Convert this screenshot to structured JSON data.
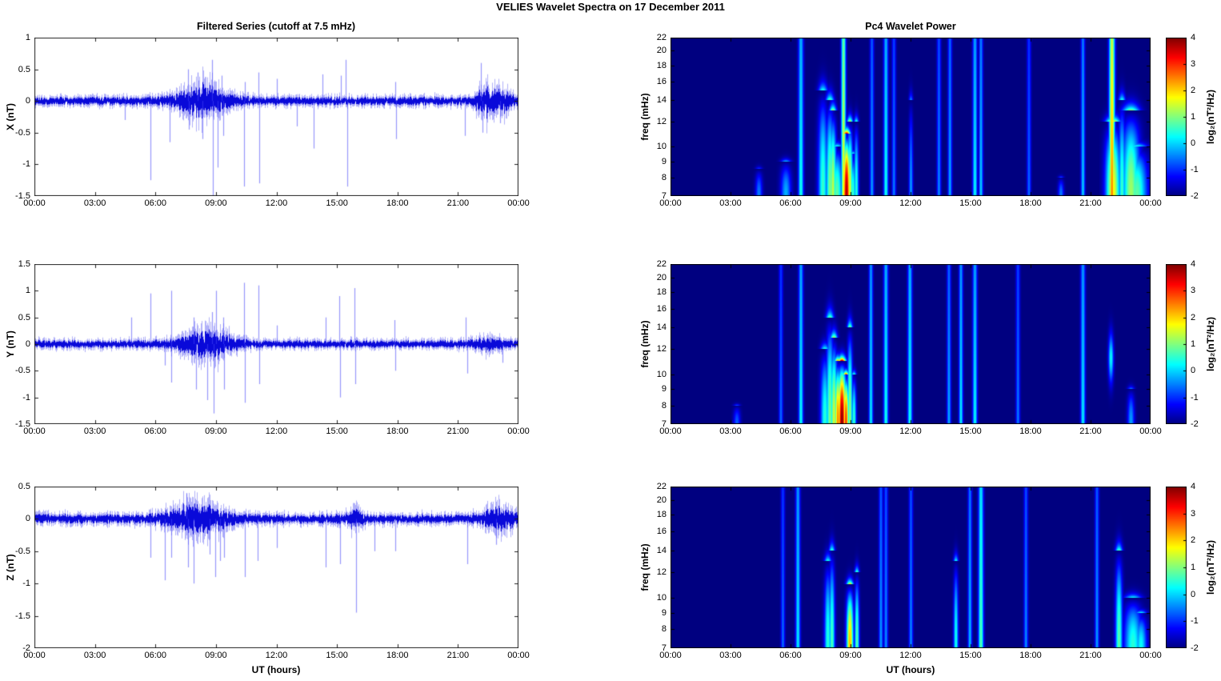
{
  "figure_title": "VELIES Wavelet Spectra on 17 December  2011",
  "left_column": {
    "title": "Filtered Series (cutoff at 7.5 mHz)",
    "xlabel": "UT (hours)"
  },
  "right_column": {
    "title": "Pc4 Wavelet Power",
    "xlabel": "UT (hours)",
    "ylabel": "freq (mHz)"
  },
  "time_axis": {
    "tick_hours": [
      0,
      3,
      6,
      9,
      12,
      15,
      18,
      21,
      24
    ],
    "tick_labels": [
      "00:00",
      "03:00",
      "06:00",
      "09:00",
      "12:00",
      "15:00",
      "18:00",
      "21:00",
      "00:00"
    ]
  },
  "colorbar": {
    "label": "log₂(nT²/Hz)",
    "tick_labels": [
      "4",
      "3",
      "2",
      "1",
      "0",
      "-1",
      "-2"
    ],
    "tick_values": [
      4,
      3,
      2,
      1,
      0,
      -1,
      -2
    ],
    "range": [
      -2,
      4
    ],
    "colormap": "jet"
  },
  "colors": {
    "series_line": "#0000E0",
    "series_fringe": "#3C3CF0",
    "spectrogram_background": "#000A8E",
    "axis": "#000000",
    "background": "#FFFFFF"
  },
  "chart_data": [
    {
      "type": "line",
      "component": "X",
      "ylabel": "X (nT)",
      "ylim": [
        -1.5,
        1
      ],
      "ytick_values": [
        1,
        0.5,
        0,
        -0.5,
        -1,
        -1.5
      ],
      "ytick_labels": [
        "1",
        "0.5",
        "0",
        "-0.5",
        "-1",
        "-1.5"
      ],
      "x_range_hours": [
        0,
        24
      ],
      "noise_sigma": 0.05,
      "bursts": [
        {
          "center": 8.3,
          "half_width": 0.9,
          "amp": 0.15
        },
        {
          "center": 22.35,
          "half_width": 0.35,
          "amp": 0.12
        },
        {
          "center": 23.2,
          "half_width": 0.35,
          "amp": 0.08
        }
      ],
      "spikes": [
        {
          "t": 4.5,
          "v": -0.3
        },
        {
          "t": 5.75,
          "v": -1.25
        },
        {
          "t": 6.7,
          "v": -0.65
        },
        {
          "t": 7.6,
          "v": 0.5
        },
        {
          "t": 7.65,
          "v": -0.45
        },
        {
          "t": 8.1,
          "v": 0.45
        },
        {
          "t": 8.35,
          "v": -0.6
        },
        {
          "t": 8.8,
          "v": 0.65
        },
        {
          "t": 8.85,
          "v": -1.5
        },
        {
          "t": 9.1,
          "v": -1.05
        },
        {
          "t": 9.3,
          "v": 0.4
        },
        {
          "t": 9.35,
          "v": -0.55
        },
        {
          "t": 10.4,
          "v": -1.35
        },
        {
          "t": 10.45,
          "v": 0.3
        },
        {
          "t": 11.1,
          "v": 0.45
        },
        {
          "t": 11.15,
          "v": -1.3
        },
        {
          "t": 12.0,
          "v": 0.35
        },
        {
          "t": 13.0,
          "v": -0.4
        },
        {
          "t": 13.85,
          "v": -0.75
        },
        {
          "t": 14.3,
          "v": 0.42
        },
        {
          "t": 15.2,
          "v": 0.4
        },
        {
          "t": 15.45,
          "v": 0.65
        },
        {
          "t": 15.5,
          "v": -1.35
        },
        {
          "t": 17.9,
          "v": 0.3
        },
        {
          "t": 17.95,
          "v": -0.6
        },
        {
          "t": 21.35,
          "v": -0.55
        },
        {
          "t": 22.15,
          "v": 0.6
        },
        {
          "t": 22.2,
          "v": -0.5
        },
        {
          "t": 23.1,
          "v": -0.35
        }
      ]
    },
    {
      "type": "line",
      "component": "Y",
      "ylabel": "Y (nT)",
      "ylim": [
        -1.5,
        1.5
      ],
      "ytick_values": [
        1.5,
        1,
        0.5,
        0,
        -0.5,
        -1,
        -1.5
      ],
      "ytick_labels": [
        "1.5",
        "1",
        "0.5",
        "0",
        "-0.5",
        "-1",
        "-1.5"
      ],
      "x_range_hours": [
        0,
        24
      ],
      "noise_sigma": 0.055,
      "bursts": [
        {
          "center": 8.5,
          "half_width": 0.9,
          "amp": 0.16
        },
        {
          "center": 22.5,
          "half_width": 0.5,
          "amp": 0.05
        }
      ],
      "spikes": [
        {
          "t": 4.8,
          "v": 0.5
        },
        {
          "t": 5.75,
          "v": 0.95
        },
        {
          "t": 6.45,
          "v": -0.4
        },
        {
          "t": 6.78,
          "v": 1.0
        },
        {
          "t": 6.8,
          "v": -0.72
        },
        {
          "t": 7.9,
          "v": 0.5
        },
        {
          "t": 8.0,
          "v": -0.85
        },
        {
          "t": 8.55,
          "v": -1.05
        },
        {
          "t": 8.8,
          "v": 0.6
        },
        {
          "t": 8.9,
          "v": -1.3
        },
        {
          "t": 9.0,
          "v": 1.0
        },
        {
          "t": 9.35,
          "v": 0.5
        },
        {
          "t": 9.4,
          "v": -0.85
        },
        {
          "t": 10.4,
          "v": 1.15
        },
        {
          "t": 10.45,
          "v": -1.1
        },
        {
          "t": 11.1,
          "v": 1.1
        },
        {
          "t": 11.15,
          "v": -0.75
        },
        {
          "t": 12.0,
          "v": 0.35
        },
        {
          "t": 14.45,
          "v": 0.5
        },
        {
          "t": 15.1,
          "v": 0.9
        },
        {
          "t": 15.15,
          "v": -1.0
        },
        {
          "t": 15.85,
          "v": 1.05
        },
        {
          "t": 15.9,
          "v": -0.75
        },
        {
          "t": 17.85,
          "v": 0.45
        },
        {
          "t": 17.9,
          "v": -0.5
        },
        {
          "t": 21.4,
          "v": 0.5
        },
        {
          "t": 21.45,
          "v": -0.55
        },
        {
          "t": 23.2,
          "v": -0.35
        }
      ]
    },
    {
      "type": "line",
      "component": "Z",
      "ylabel": "Z (nT)",
      "ylim": [
        -2,
        0.5
      ],
      "ytick_values": [
        0.5,
        0,
        -0.5,
        -1,
        -1.5,
        -2
      ],
      "ytick_labels": [
        "0.5",
        "0",
        "-0.5",
        "-1",
        "-1.5",
        "-2"
      ],
      "x_range_hours": [
        0,
        24
      ],
      "noise_sigma": 0.055,
      "bursts": [
        {
          "center": 8.1,
          "half_width": 1.0,
          "amp": 0.13
        },
        {
          "center": 15.9,
          "half_width": 0.25,
          "amp": 0.08
        },
        {
          "center": 23.0,
          "half_width": 0.55,
          "amp": 0.1
        }
      ],
      "spikes": [
        {
          "t": 5.75,
          "v": -0.6
        },
        {
          "t": 6.45,
          "v": -0.95
        },
        {
          "t": 6.8,
          "v": -0.6
        },
        {
          "t": 7.55,
          "v": 0.4
        },
        {
          "t": 7.6,
          "v": -0.75
        },
        {
          "t": 7.9,
          "v": -1.0
        },
        {
          "t": 8.7,
          "v": -0.55
        },
        {
          "t": 8.95,
          "v": -0.9
        },
        {
          "t": 9.2,
          "v": -0.65
        },
        {
          "t": 9.4,
          "v": -0.6
        },
        {
          "t": 10.45,
          "v": -0.9
        },
        {
          "t": 11.05,
          "v": -0.65
        },
        {
          "t": 12.0,
          "v": -0.45
        },
        {
          "t": 14.45,
          "v": -0.75
        },
        {
          "t": 15.15,
          "v": -0.7
        },
        {
          "t": 15.93,
          "v": -1.45
        },
        {
          "t": 16.85,
          "v": -0.5
        },
        {
          "t": 17.88,
          "v": -0.5
        },
        {
          "t": 21.45,
          "v": -0.7
        },
        {
          "t": 22.9,
          "v": -0.4
        }
      ]
    },
    {
      "type": "heatmap",
      "component": "X",
      "ylabel": "freq (mHz)",
      "ylim": [
        7,
        22
      ],
      "yscale": "log",
      "ytick_values": [
        22,
        20,
        18,
        16,
        14,
        12,
        10,
        9,
        8,
        7
      ],
      "ytick_labels": [
        "22",
        "20",
        "18",
        "16",
        "14",
        "12",
        "10",
        "9",
        "8",
        "7"
      ],
      "value_range": [
        -2,
        4
      ],
      "background_value": -2,
      "features": [
        {
          "t": 4.4,
          "f": 8.5,
          "p": -0.5,
          "w": 0.12
        },
        {
          "t": 5.75,
          "f": 9,
          "p": -0.2,
          "w": 0.18
        },
        {
          "t": 6.5,
          "f": 22,
          "p": 0.4,
          "w": 0.09
        },
        {
          "t": 7.6,
          "f": 15,
          "p": 0.6,
          "w": 0.16
        },
        {
          "t": 7.95,
          "f": 14,
          "p": 1.0,
          "w": 0.14
        },
        {
          "t": 8.1,
          "f": 13,
          "p": 1.4,
          "w": 0.12
        },
        {
          "t": 8.3,
          "f": 10,
          "p": 0.8,
          "w": 0.2
        },
        {
          "t": 8.63,
          "f": 22,
          "p": 1.8,
          "w": 0.08
        },
        {
          "t": 8.78,
          "f": 11,
          "p": 3.8,
          "w": 0.13
        },
        {
          "t": 8.95,
          "f": 12,
          "p": 1.6,
          "w": 0.1
        },
        {
          "t": 9.1,
          "f": 9.5,
          "p": 0.6,
          "w": 0.1
        },
        {
          "t": 9.27,
          "f": 12,
          "p": 0.5,
          "w": 0.08
        },
        {
          "t": 10.05,
          "f": 22,
          "p": -0.3,
          "w": 0.07
        },
        {
          "t": 10.75,
          "f": 22,
          "p": 0.4,
          "w": 0.08
        },
        {
          "t": 11.15,
          "f": 22,
          "p": -0.5,
          "w": 0.07
        },
        {
          "t": 12.0,
          "f": 14,
          "p": -0.3,
          "w": 0.07
        },
        {
          "t": 13.4,
          "f": 22,
          "p": -0.4,
          "w": 0.07
        },
        {
          "t": 13.95,
          "f": 22,
          "p": -0.2,
          "w": 0.07
        },
        {
          "t": 15.2,
          "f": 22,
          "p": 0.3,
          "w": 0.08
        },
        {
          "t": 15.5,
          "f": 22,
          "p": 0.0,
          "w": 0.07
        },
        {
          "t": 17.9,
          "f": 22,
          "p": -0.6,
          "w": 0.07
        },
        {
          "t": 19.5,
          "f": 8,
          "p": -0.5,
          "w": 0.1
        },
        {
          "t": 20.6,
          "f": 22,
          "p": 0.0,
          "w": 0.07
        },
        {
          "t": 22.05,
          "f": 22,
          "p": 2.6,
          "w": 0.1
        },
        {
          "t": 22.1,
          "f": 12,
          "p": 1.8,
          "w": 0.25
        },
        {
          "t": 22.55,
          "f": 14,
          "p": 0.6,
          "w": 0.12
        },
        {
          "t": 23.0,
          "f": 13,
          "p": 1.2,
          "w": 0.3
        },
        {
          "t": 23.3,
          "f": 10,
          "p": 0.8,
          "w": 0.35
        }
      ]
    },
    {
      "type": "heatmap",
      "component": "Y",
      "ylabel": "freq (mHz)",
      "ylim": [
        7,
        22
      ],
      "yscale": "log",
      "ytick_values": [
        22,
        20,
        18,
        16,
        14,
        12,
        10,
        9,
        8,
        7
      ],
      "ytick_labels": [
        "22",
        "20",
        "18",
        "16",
        "14",
        "12",
        "10",
        "9",
        "8",
        "7"
      ],
      "value_range": [
        -2,
        4
      ],
      "background_value": -2,
      "features": [
        {
          "t": 3.3,
          "f": 8,
          "p": -0.7,
          "w": 0.12
        },
        {
          "t": 5.5,
          "f": 22,
          "p": -0.6,
          "w": 0.07
        },
        {
          "t": 6.5,
          "f": 22,
          "p": 0.3,
          "w": 0.08
        },
        {
          "t": 7.7,
          "f": 12,
          "p": 0.5,
          "w": 0.15
        },
        {
          "t": 7.95,
          "f": 15,
          "p": 1.0,
          "w": 0.13
        },
        {
          "t": 8.15,
          "f": 13,
          "p": 1.5,
          "w": 0.12
        },
        {
          "t": 8.35,
          "f": 11,
          "p": 2.5,
          "w": 0.12
        },
        {
          "t": 8.55,
          "f": 11,
          "p": 4.0,
          "w": 0.14
        },
        {
          "t": 8.75,
          "f": 10,
          "p": 3.0,
          "w": 0.1
        },
        {
          "t": 8.95,
          "f": 14,
          "p": 1.2,
          "w": 0.09
        },
        {
          "t": 9.15,
          "f": 10,
          "p": 0.6,
          "w": 0.08
        },
        {
          "t": 10.0,
          "f": 22,
          "p": 0.2,
          "w": 0.07
        },
        {
          "t": 10.75,
          "f": 22,
          "p": 0.4,
          "w": 0.08
        },
        {
          "t": 11.95,
          "f": 22,
          "p": 0.4,
          "w": 0.08
        },
        {
          "t": 13.9,
          "f": 22,
          "p": -0.2,
          "w": 0.07
        },
        {
          "t": 14.5,
          "f": 22,
          "p": 0.2,
          "w": 0.07
        },
        {
          "t": 15.2,
          "f": 22,
          "p": 0.3,
          "w": 0.08
        },
        {
          "t": 17.35,
          "f": 22,
          "p": -0.5,
          "w": 0.07
        },
        {
          "t": 20.6,
          "f": 22,
          "p": 0.2,
          "w": 0.08
        },
        {
          "t": 22.0,
          "f": 14,
          "fmin": 9,
          "p": 0.3,
          "w": 0.09
        },
        {
          "t": 23.0,
          "f": 9,
          "p": -0.3,
          "w": 0.12
        }
      ]
    },
    {
      "type": "heatmap",
      "component": "Z",
      "ylabel": "freq (mHz)",
      "ylim": [
        7,
        22
      ],
      "yscale": "log",
      "ytick_values": [
        22,
        20,
        18,
        16,
        14,
        12,
        10,
        9,
        8,
        7
      ],
      "ytick_labels": [
        "22",
        "20",
        "18",
        "16",
        "14",
        "12",
        "10",
        "9",
        "8",
        "7"
      ],
      "value_range": [
        -2,
        4
      ],
      "background_value": -2,
      "features": [
        {
          "t": 5.6,
          "f": 22,
          "p": -0.6,
          "w": 0.07
        },
        {
          "t": 6.35,
          "f": 22,
          "p": 0.2,
          "w": 0.08
        },
        {
          "t": 7.85,
          "f": 13,
          "p": 0.5,
          "w": 0.12
        },
        {
          "t": 8.05,
          "f": 14,
          "p": 0.7,
          "w": 0.1
        },
        {
          "t": 8.95,
          "f": 11,
          "p": 2.2,
          "w": 0.12
        },
        {
          "t": 9.3,
          "f": 12,
          "p": 0.8,
          "w": 0.08
        },
        {
          "t": 10.5,
          "f": 22,
          "p": -0.3,
          "w": 0.07
        },
        {
          "t": 10.75,
          "f": 22,
          "p": -0.4,
          "w": 0.07
        },
        {
          "t": 12.0,
          "f": 22,
          "p": -0.4,
          "w": 0.07
        },
        {
          "t": 14.25,
          "f": 13,
          "p": 0.4,
          "w": 0.08
        },
        {
          "t": 14.95,
          "f": 22,
          "p": -0.1,
          "w": 0.07
        },
        {
          "t": 15.5,
          "f": 22,
          "p": 0.8,
          "w": 0.09
        },
        {
          "t": 17.75,
          "f": 22,
          "p": -0.4,
          "w": 0.07
        },
        {
          "t": 21.3,
          "f": 22,
          "p": -0.3,
          "w": 0.07
        },
        {
          "t": 22.4,
          "f": 14,
          "p": 0.8,
          "w": 0.12
        },
        {
          "t": 23.1,
          "f": 10,
          "p": 0.5,
          "w": 0.3
        },
        {
          "t": 23.5,
          "f": 9,
          "p": 0.3,
          "w": 0.2
        }
      ]
    }
  ]
}
